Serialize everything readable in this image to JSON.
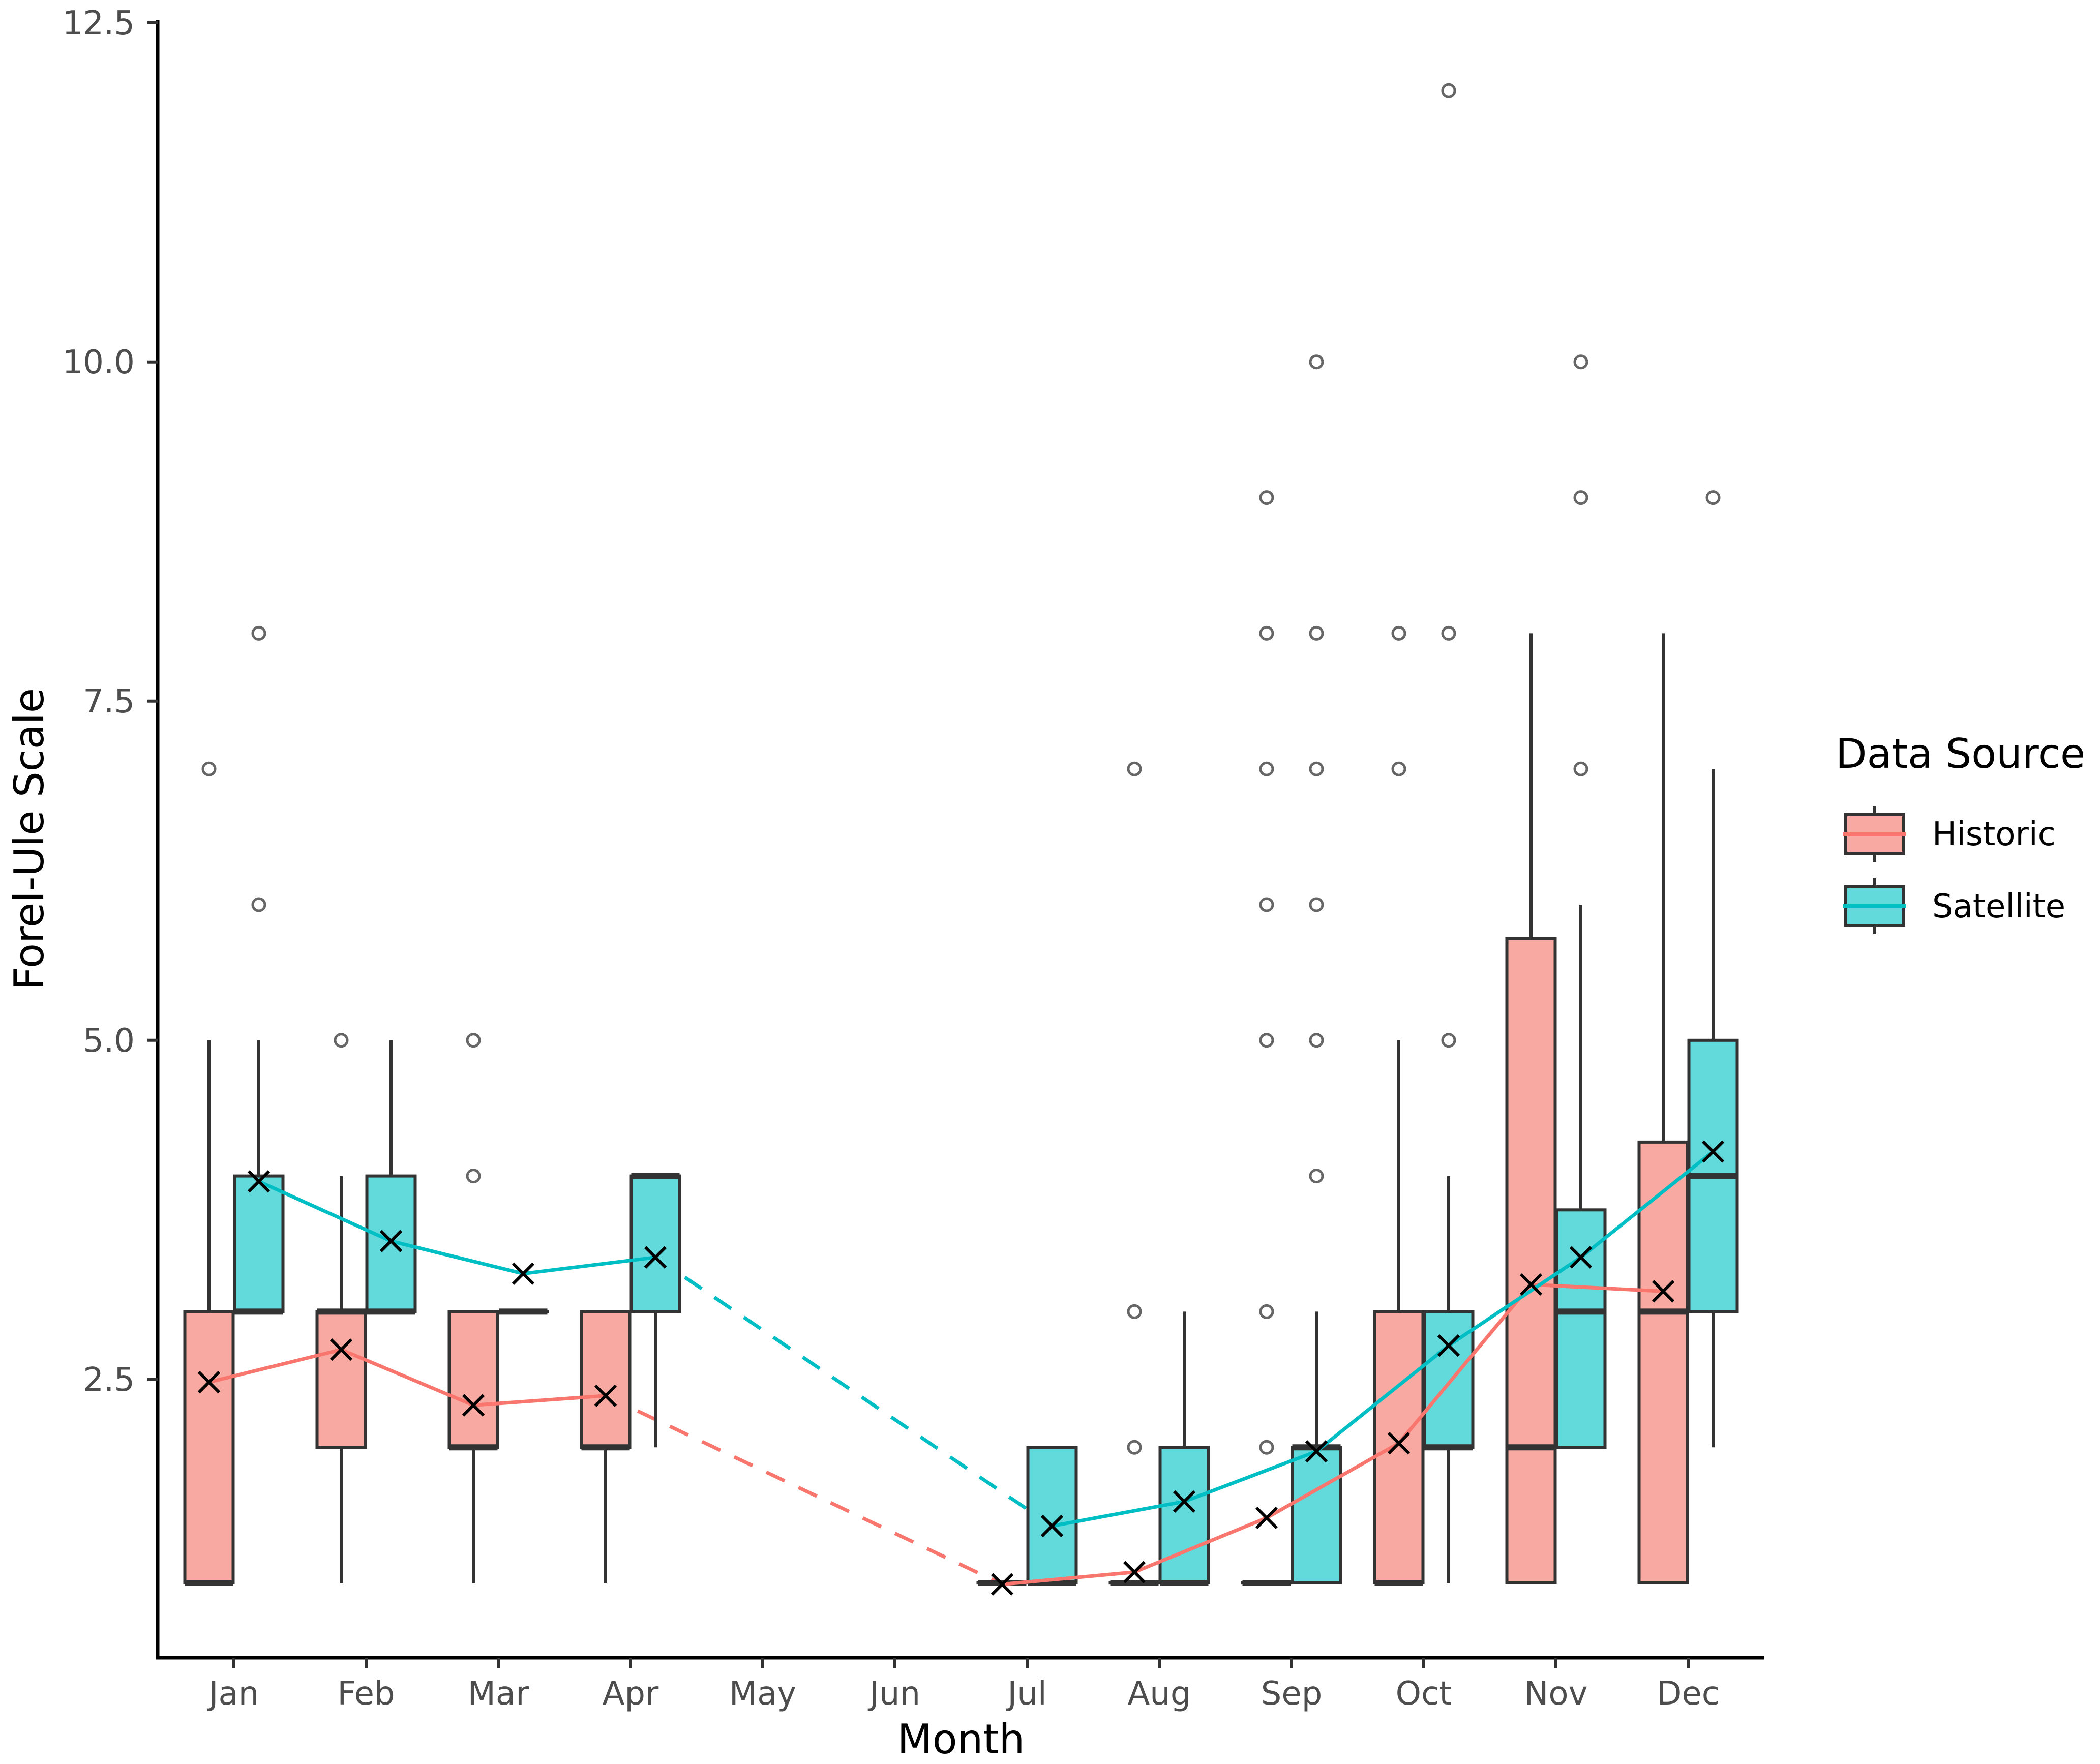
{
  "chart_data": {
    "type": "box",
    "xlabel": "Month",
    "ylabel": "Forel-Ule Scale",
    "categories": [
      "Jan",
      "Feb",
      "Mar",
      "Apr",
      "May",
      "Jun",
      "Jul",
      "Aug",
      "Sep",
      "Oct",
      "Nov",
      "Dec"
    ],
    "ylim": [
      0,
      12.5
    ],
    "yticks": [
      2.5,
      5.0,
      7.5,
      10.0,
      12.5
    ],
    "ytick_labels": [
      "2.5",
      "5.0",
      "7.5",
      "10.0",
      "12.5"
    ],
    "legend": {
      "title": "Data Source",
      "position": "right"
    },
    "series": [
      {
        "name": "Historic",
        "color": "#F8766D",
        "fill": "#F8A9A2",
        "boxes": [
          {
            "month": "Jan",
            "q1": 1,
            "median": 1,
            "q3": 3,
            "whisker_low": 1,
            "whisker_high": 5,
            "outliers": [
              7
            ]
          },
          {
            "month": "Feb",
            "q1": 2,
            "median": 3,
            "q3": 3,
            "whisker_low": 1,
            "whisker_high": 4,
            "outliers": [
              5
            ]
          },
          {
            "month": "Mar",
            "q1": 2,
            "median": 2,
            "q3": 3,
            "whisker_low": 1,
            "whisker_high": 3,
            "outliers": [
              4,
              5
            ]
          },
          {
            "month": "Apr",
            "q1": 2,
            "median": 2,
            "q3": 3,
            "whisker_low": 1,
            "whisker_high": 3,
            "outliers": []
          },
          {
            "month": "Jul",
            "q1": 1,
            "median": 1,
            "q3": 1,
            "whisker_low": 1,
            "whisker_high": 1,
            "outliers": []
          },
          {
            "month": "Aug",
            "q1": 1,
            "median": 1,
            "q3": 1,
            "whisker_low": 1,
            "whisker_high": 1,
            "outliers": [
              2,
              3,
              7
            ]
          },
          {
            "month": "Sep",
            "q1": 1,
            "median": 1,
            "q3": 1,
            "whisker_low": 1,
            "whisker_high": 1,
            "outliers": [
              2,
              3,
              5,
              6,
              7,
              8,
              9
            ]
          },
          {
            "month": "Oct",
            "q1": 1,
            "median": 1,
            "q3": 3,
            "whisker_low": 1,
            "whisker_high": 5,
            "outliers": [
              7,
              8
            ]
          },
          {
            "month": "Nov",
            "q1": 1,
            "median": 2,
            "q3": 5.75,
            "whisker_low": 1,
            "whisker_high": 8,
            "outliers": []
          },
          {
            "month": "Dec",
            "q1": 1,
            "median": 3,
            "q3": 4.25,
            "whisker_low": 1,
            "whisker_high": 8,
            "outliers": []
          }
        ],
        "means": [
          {
            "month": "Jan",
            "value": 2.48
          },
          {
            "month": "Feb",
            "value": 2.72
          },
          {
            "month": "Mar",
            "value": 2.31
          },
          {
            "month": "Apr",
            "value": 2.38
          },
          {
            "month": "Jul",
            "value": 0.99
          },
          {
            "month": "Aug",
            "value": 1.08
          },
          {
            "month": "Sep",
            "value": 1.48
          },
          {
            "month": "Oct",
            "value": 2.03
          },
          {
            "month": "Nov",
            "value": 3.2
          },
          {
            "month": "Dec",
            "value": 3.15
          }
        ]
      },
      {
        "name": "Satellite",
        "color": "#00BFC4",
        "fill": "#62D9DB",
        "boxes": [
          {
            "month": "Jan",
            "q1": 3,
            "median": 3,
            "q3": 4,
            "whisker_low": 3,
            "whisker_high": 5,
            "outliers": [
              6,
              8
            ]
          },
          {
            "month": "Feb",
            "q1": 3,
            "median": 3,
            "q3": 4,
            "whisker_low": 3,
            "whisker_high": 5,
            "outliers": []
          },
          {
            "month": "Mar",
            "q1": 3,
            "median": 3,
            "q3": 3,
            "whisker_low": 3,
            "whisker_high": 3,
            "outliers": []
          },
          {
            "month": "Apr",
            "q1": 3,
            "median": 4,
            "q3": 4,
            "whisker_low": 2,
            "whisker_high": 4,
            "outliers": []
          },
          {
            "month": "Jul",
            "q1": 1,
            "median": 1,
            "q3": 2,
            "whisker_low": 1,
            "whisker_high": 2,
            "outliers": []
          },
          {
            "month": "Aug",
            "q1": 1,
            "median": 1,
            "q3": 2,
            "whisker_low": 1,
            "whisker_high": 3,
            "outliers": []
          },
          {
            "month": "Sep",
            "q1": 1,
            "median": 2,
            "q3": 2,
            "whisker_low": 1,
            "whisker_high": 3,
            "outliers": [
              4,
              5,
              6,
              7,
              8,
              10
            ]
          },
          {
            "month": "Oct",
            "q1": 2,
            "median": 2,
            "q3": 3,
            "whisker_low": 1,
            "whisker_high": 4,
            "outliers": [
              5,
              8,
              12
            ]
          },
          {
            "month": "Nov",
            "q1": 2,
            "median": 3,
            "q3": 3.75,
            "whisker_low": 2,
            "whisker_high": 6,
            "outliers": [
              7,
              9,
              10
            ]
          },
          {
            "month": "Dec",
            "q1": 3,
            "median": 4,
            "q3": 5,
            "whisker_low": 2,
            "whisker_high": 7,
            "outliers": [
              9
            ]
          }
        ],
        "means": [
          {
            "month": "Jan",
            "value": 3.96
          },
          {
            "month": "Feb",
            "value": 3.52
          },
          {
            "month": "Mar",
            "value": 3.28
          },
          {
            "month": "Apr",
            "value": 3.4
          },
          {
            "month": "Jul",
            "value": 1.42
          },
          {
            "month": "Aug",
            "value": 1.6
          },
          {
            "month": "Sep",
            "value": 1.97
          },
          {
            "month": "Oct",
            "value": 2.75
          },
          {
            "month": "Nov",
            "value": 3.4
          },
          {
            "month": "Dec",
            "value": 4.18
          }
        ]
      }
    ],
    "gap_dashed": {
      "from": "Apr",
      "to": "Jul"
    },
    "mean_marker": "x"
  }
}
